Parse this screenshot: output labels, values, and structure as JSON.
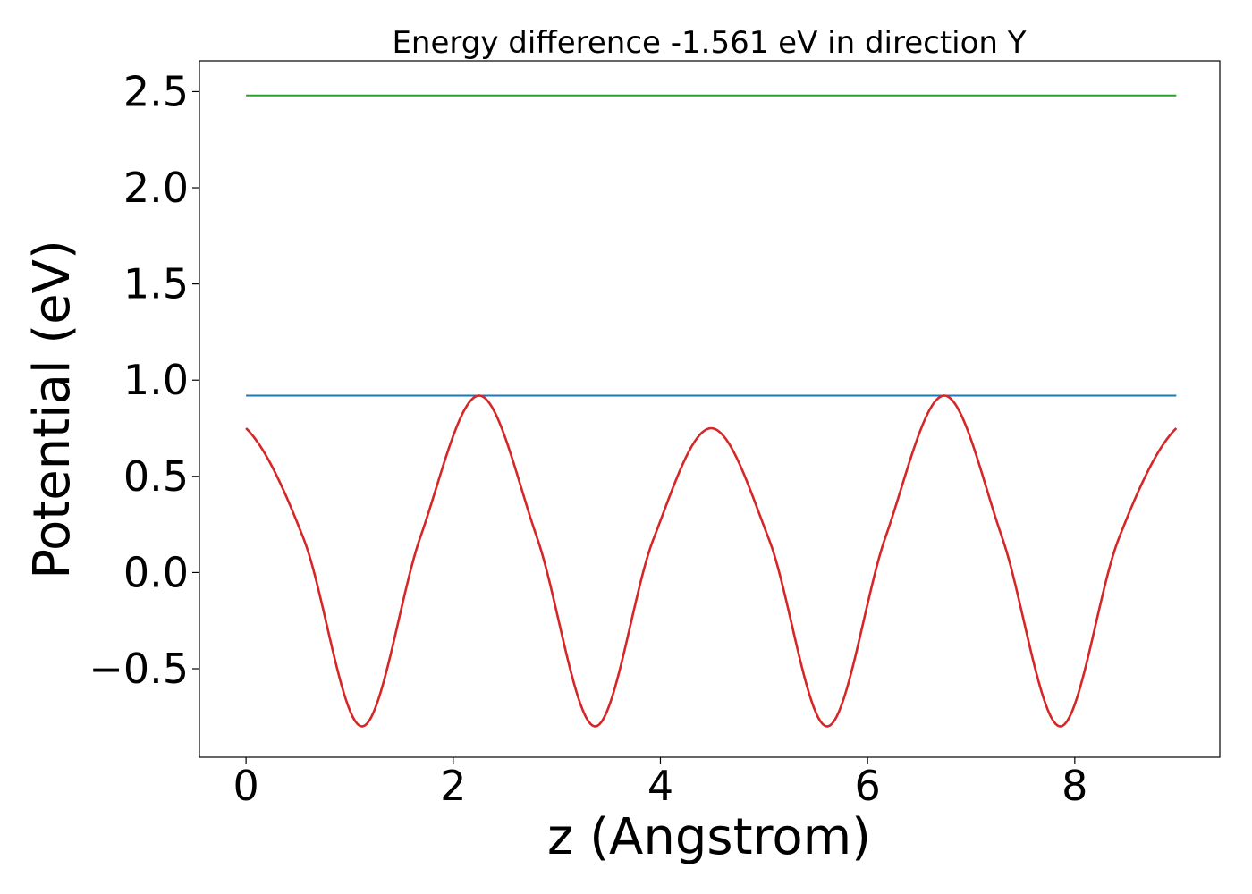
{
  "chart_data": {
    "type": "line",
    "title": "Energy difference -1.561 eV in direction Y",
    "xlabel": "z (Angstrom)",
    "ylabel": "Potential (eV)",
    "xlim": [
      -0.45,
      9.4
    ],
    "ylim": [
      -0.96,
      2.66
    ],
    "xticks": [
      0,
      2,
      4,
      6,
      8
    ],
    "xtick_labels": [
      "0",
      "2",
      "4",
      "6",
      "8"
    ],
    "yticks": [
      -0.5,
      0.0,
      0.5,
      1.0,
      1.5,
      2.0,
      2.5
    ],
    "ytick_labels": [
      "−0.5",
      "0.0",
      "0.5",
      "1.0",
      "1.5",
      "2.0",
      "2.5"
    ],
    "grid": false,
    "legend": "none",
    "series": [
      {
        "color": "#2ca02c",
        "x": [
          0,
          8.98
        ],
        "y": [
          2.48,
          2.48
        ]
      },
      {
        "color": "#1f77b4",
        "x": [
          0,
          8.98
        ],
        "y": [
          0.92,
          0.92
        ]
      },
      {
        "color": "#d62728",
        "x": [
          0.0,
          0.56,
          1.12,
          1.68,
          2.25,
          2.81,
          3.37,
          3.93,
          4.49,
          5.05,
          5.61,
          6.17,
          6.74,
          7.3,
          7.86,
          8.42,
          8.98
        ],
        "y": [
          0.75,
          0.17,
          -0.8,
          0.18,
          0.92,
          0.18,
          -0.8,
          0.17,
          0.75,
          0.17,
          -0.8,
          0.18,
          0.92,
          0.18,
          -0.8,
          0.17,
          0.75
        ]
      }
    ]
  }
}
